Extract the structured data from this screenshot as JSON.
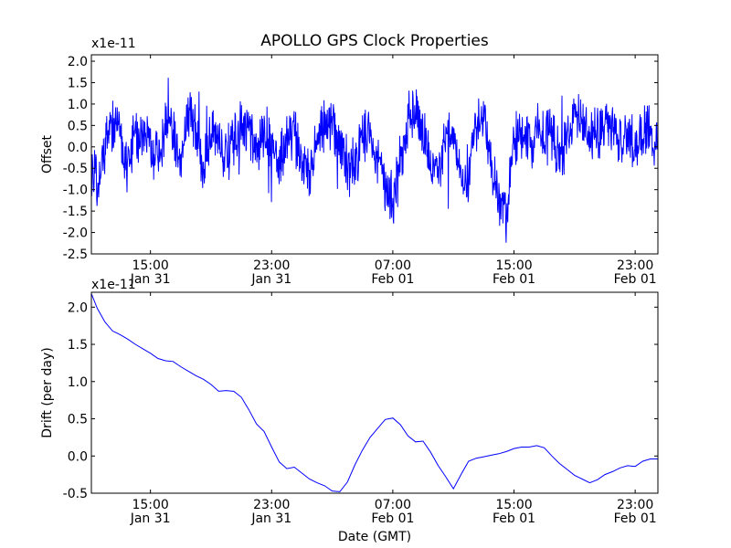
{
  "chart_data": [
    {
      "type": "line",
      "title": "APOLLO GPS Clock Properties",
      "xlabel": "",
      "ylabel": "Offset",
      "offset_text": "x1e-11",
      "ylim": [
        -2.5,
        2.15
      ],
      "xlim_hours": [
        11.1,
        48.5
      ],
      "grid": false,
      "line_color": "#0000ff",
      "yticks": [
        {
          "label": "-2.5",
          "value": -2.5
        },
        {
          "label": "-2.0",
          "value": -2.0
        },
        {
          "label": "-1.5",
          "value": -1.5
        },
        {
          "label": "-1.0",
          "value": -1.0
        },
        {
          "label": "-0.5",
          "value": -0.5
        },
        {
          "label": "0.0",
          "value": 0.0
        },
        {
          "label": "0.5",
          "value": 0.5
        },
        {
          "label": "1.0",
          "value": 1.0
        },
        {
          "label": "1.5",
          "value": 1.5
        },
        {
          "label": "2.0",
          "value": 2.0
        }
      ],
      "xticks": [
        {
          "time": "15:00",
          "date": "Jan 31",
          "hour": 15
        },
        {
          "time": "23:00",
          "date": "Jan 31",
          "hour": 23
        },
        {
          "time": "07:00",
          "date": "Feb 01",
          "hour": 31
        },
        {
          "time": "15:00",
          "date": "Feb 01",
          "hour": 39
        },
        {
          "time": "23:00",
          "date": "Feb 01",
          "hour": 47
        }
      ],
      "series": [
        {
          "x_hours": [
            11.1,
            11.5,
            12.0,
            12.5,
            13.0,
            13.4,
            14.0,
            14.5,
            15.0,
            15.5,
            16.0,
            16.5,
            17.0,
            17.5,
            18.0,
            18.5,
            19.0,
            19.5,
            20.0,
            20.5,
            21.0,
            21.5,
            22.0,
            22.5,
            23.0,
            23.5,
            24.0,
            24.5,
            25.0,
            25.5,
            26.0,
            26.5,
            27.0,
            27.5,
            28.0,
            28.5,
            29.0,
            29.5,
            30.0,
            30.5,
            31.0,
            31.5,
            32.0,
            32.5,
            33.0,
            33.5,
            34.0,
            34.5,
            35.0,
            35.5,
            36.0,
            36.5,
            37.0,
            37.5,
            38.0,
            38.5,
            39.0,
            39.5,
            40.0,
            40.5,
            41.0,
            41.5,
            42.0,
            42.5,
            43.0,
            43.5,
            44.0,
            44.5,
            45.0,
            45.5,
            46.0,
            46.5,
            47.0,
            47.5,
            48.0,
            48.5
          ],
          "values": [
            -0.4,
            -1.0,
            0.1,
            0.6,
            0.3,
            -0.4,
            0.2,
            0.3,
            0.1,
            -0.3,
            0.4,
            0.2,
            -0.2,
            0.9,
            0.3,
            -0.5,
            0.4,
            0.2,
            -0.3,
            0.1,
            0.4,
            0.3,
            -0.2,
            0.4,
            0.1,
            -0.4,
            0.2,
            0.3,
            -0.3,
            -0.6,
            0.2,
            0.6,
            0.4,
            0.1,
            -0.5,
            -0.4,
            0.4,
            0.2,
            -0.3,
            -1.0,
            -1.2,
            -0.5,
            0.6,
            0.8,
            0.3,
            -0.4,
            -0.6,
            0.3,
            0.2,
            -0.8,
            -1.0,
            0.6,
            0.9,
            -0.5,
            -1.2,
            -1.8,
            0.2,
            0.3,
            0.0,
            0.3,
            0.2,
            0.4,
            -0.3,
            0.1,
            0.7,
            0.5,
            0.2,
            0.2,
            0.8,
            0.4,
            0.3,
            0.2,
            0.1,
            0.4,
            0.3,
            -0.1
          ]
        }
      ]
    },
    {
      "type": "line",
      "title": "",
      "xlabel": "Date (GMT)",
      "ylabel": "Drift (per day)",
      "offset_text": "x1e-11",
      "ylim": [
        -0.5,
        2.2
      ],
      "xlim_hours": [
        11.1,
        48.5
      ],
      "grid": false,
      "line_color": "#0000ff",
      "yticks": [
        {
          "label": "-0.5",
          "value": -0.5
        },
        {
          "label": "0.0",
          "value": 0.0
        },
        {
          "label": "0.5",
          "value": 0.5
        },
        {
          "label": "1.0",
          "value": 1.0
        },
        {
          "label": "1.5",
          "value": 1.5
        },
        {
          "label": "2.0",
          "value": 2.0
        }
      ],
      "xticks": [
        {
          "time": "15:00",
          "date": "Jan 31",
          "hour": 15
        },
        {
          "time": "23:00",
          "date": "Jan 31",
          "hour": 23
        },
        {
          "time": "07:00",
          "date": "Feb 01",
          "hour": 31
        },
        {
          "time": "15:00",
          "date": "Feb 01",
          "hour": 39
        },
        {
          "time": "23:00",
          "date": "Feb 01",
          "hour": 47
        }
      ],
      "series": [
        {
          "x_hours": [
            11.1,
            11.5,
            12.0,
            12.5,
            13.0,
            13.5,
            14.0,
            14.5,
            15.0,
            15.5,
            16.0,
            16.5,
            17.0,
            17.5,
            18.0,
            18.5,
            19.0,
            19.5,
            20.0,
            20.5,
            21.0,
            21.5,
            22.0,
            22.5,
            23.0,
            23.5,
            24.0,
            24.5,
            25.0,
            25.5,
            26.0,
            26.5,
            27.0,
            27.5,
            28.0,
            28.5,
            29.0,
            29.5,
            30.0,
            30.5,
            31.0,
            31.5,
            32.0,
            32.5,
            33.0,
            33.5,
            34.0,
            34.5,
            35.0,
            35.5,
            36.0,
            36.5,
            37.0,
            37.5,
            38.0,
            38.5,
            39.0,
            39.5,
            40.0,
            40.5,
            41.0,
            41.5,
            42.0,
            42.5,
            43.0,
            43.5,
            44.0,
            44.5,
            45.0,
            45.5,
            46.0,
            46.5,
            47.0,
            47.5,
            48.0,
            48.5
          ],
          "values": [
            2.18,
            1.98,
            1.8,
            1.68,
            1.63,
            1.57,
            1.5,
            1.44,
            1.38,
            1.31,
            1.28,
            1.27,
            1.2,
            1.14,
            1.08,
            1.03,
            0.96,
            0.87,
            0.88,
            0.87,
            0.79,
            0.62,
            0.43,
            0.33,
            0.12,
            -0.08,
            -0.17,
            -0.15,
            -0.23,
            -0.31,
            -0.36,
            -0.4,
            -0.47,
            -0.48,
            -0.35,
            -0.12,
            0.08,
            0.25,
            0.37,
            0.49,
            0.51,
            0.42,
            0.27,
            0.19,
            0.2,
            0.05,
            -0.13,
            -0.28,
            -0.44,
            -0.25,
            -0.07,
            -0.03,
            -0.01,
            0.01,
            0.03,
            0.06,
            0.1,
            0.12,
            0.12,
            0.14,
            0.11,
            0.0,
            -0.1,
            -0.18,
            -0.26,
            -0.31,
            -0.36,
            -0.32,
            -0.25,
            -0.21,
            -0.16,
            -0.13,
            -0.14,
            -0.07,
            -0.04,
            -0.04
          ]
        }
      ]
    }
  ]
}
